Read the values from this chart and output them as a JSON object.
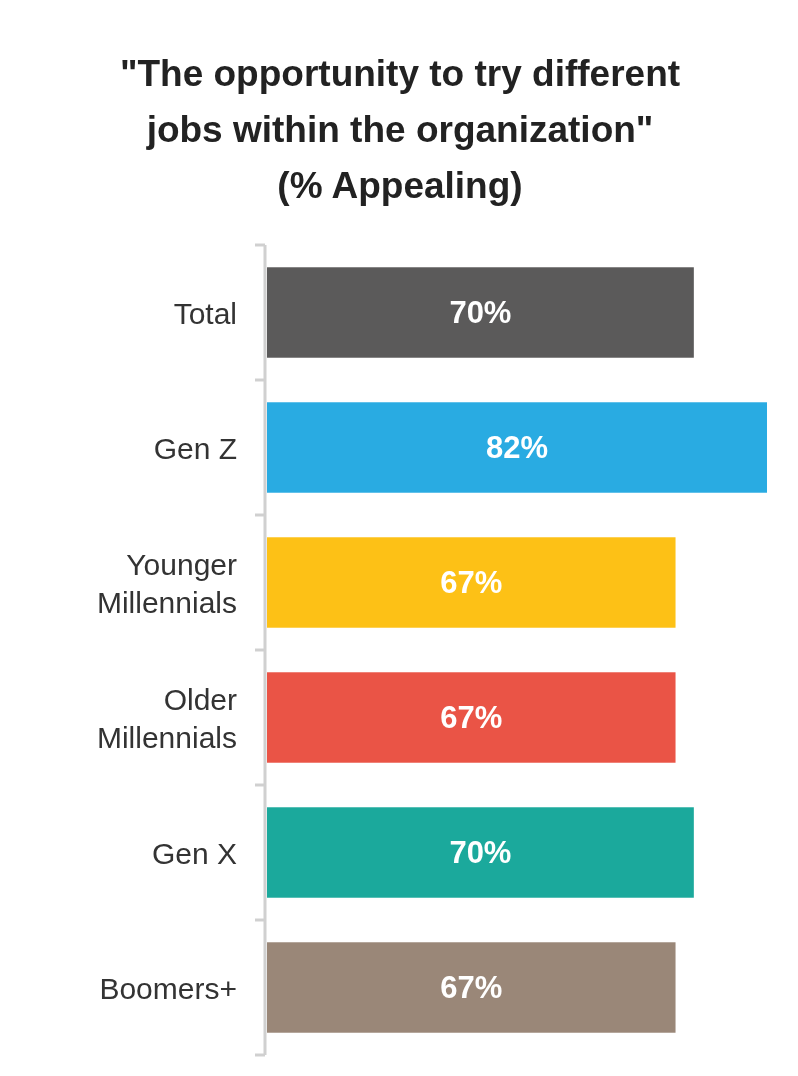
{
  "chart_data": {
    "type": "bar",
    "orientation": "horizontal",
    "title": "\"The opportunity to try different jobs within the organization\" (% Appealing)",
    "categories": [
      "Total",
      "Gen Z",
      "Younger Millennials",
      "Older Millennials",
      "Gen X",
      "Boomers+"
    ],
    "values": [
      70,
      82,
      67,
      67,
      70,
      67
    ],
    "colors": [
      "#5b5a5a",
      "#29abe2",
      "#fdc116",
      "#ea5446",
      "#1ba99c",
      "#9a8778"
    ],
    "value_labels": [
      "70%",
      "82%",
      "67%",
      "67%",
      "70%",
      "67%"
    ]
  }
}
